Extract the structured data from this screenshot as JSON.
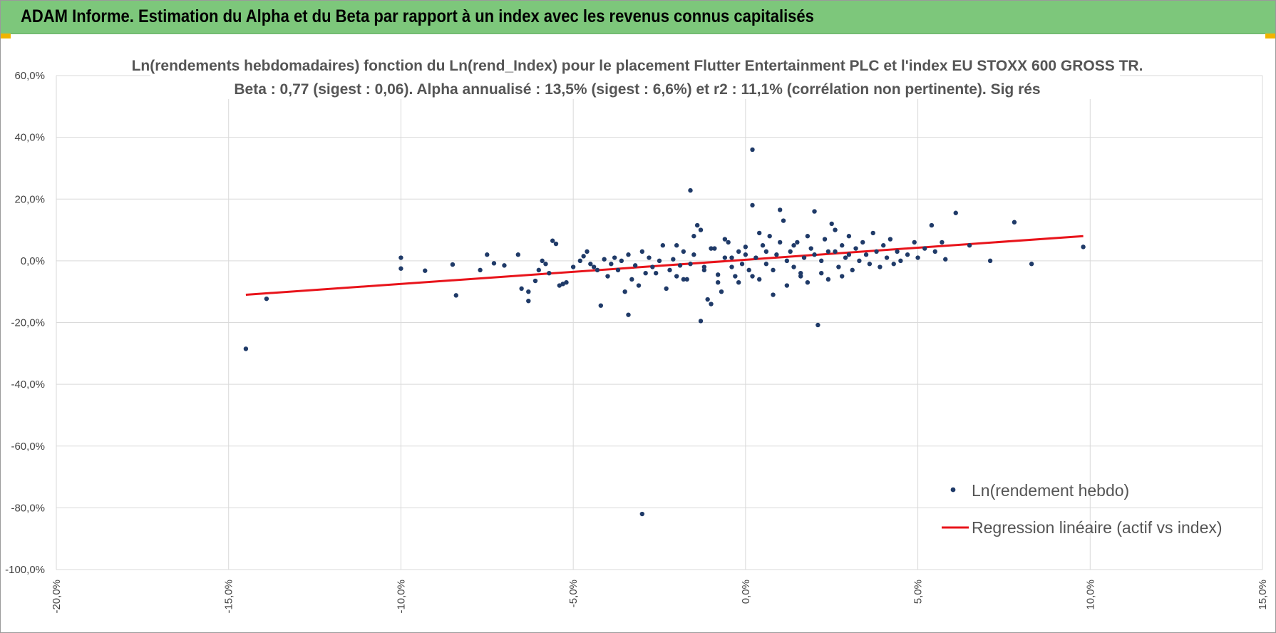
{
  "header": {
    "title": "ADAM Informe. Estimation du Alpha et du Beta par rapport à un index avec les revenus connus capitalisés"
  },
  "colors": {
    "header_bg": "#7dc77b",
    "points": "#1f3a68",
    "regression": "#e8141b",
    "grid": "#d9d9d9"
  },
  "chart_data": {
    "type": "scatter",
    "title": "Ln(rendements hebdomadaires) fonction du Ln(rend_Index) pour le placement Flutter Entertainment PLC et l'index EU STOXX 600 GROSS TR.",
    "subtitle": "Beta : 0,77 (sigest : 0,06). Alpha annualisé : 13,5% (sigest : 6,6%) et r2 : 11,1% (corrélation non pertinente). Sig rés",
    "xlabel": "",
    "ylabel": "",
    "xlim": [
      -0.2,
      0.15
    ],
    "ylim": [
      -1.0,
      0.6
    ],
    "x_ticks": [
      -0.2,
      -0.15,
      -0.1,
      -0.05,
      0.0,
      0.05,
      0.1,
      0.15
    ],
    "x_tick_labels": [
      "-20,0%",
      "-15,0%",
      "-10,0%",
      "-5,0%",
      "0,0%",
      "5,0%",
      "10,0%",
      "15,0%"
    ],
    "y_ticks": [
      0.6,
      0.4,
      0.2,
      0.0,
      -0.2,
      -0.4,
      -0.6,
      -0.8,
      -1.0
    ],
    "y_tick_labels": [
      "60,0%",
      "40,0%",
      "20,0%",
      "0,0%",
      "-20,0%",
      "-40,0%",
      "-60,0%",
      "-80,0%",
      "-100,0%"
    ],
    "grid": true,
    "legend_position": "bottom-right",
    "series": [
      {
        "name": "Ln(rendement hebdo)",
        "kind": "scatter",
        "points": [
          [
            -0.145,
            -0.285
          ],
          [
            -0.139,
            -0.123
          ],
          [
            -0.1,
            0.01
          ],
          [
            -0.1,
            -0.025
          ],
          [
            -0.093,
            -0.032
          ],
          [
            -0.085,
            -0.012
          ],
          [
            -0.084,
            -0.112
          ],
          [
            -0.077,
            -0.03
          ],
          [
            -0.075,
            0.02
          ],
          [
            -0.073,
            -0.008
          ],
          [
            -0.07,
            -0.015
          ],
          [
            -0.066,
            0.02
          ],
          [
            -0.065,
            -0.09
          ],
          [
            -0.063,
            -0.13
          ],
          [
            -0.063,
            -0.1
          ],
          [
            -0.061,
            -0.065
          ],
          [
            -0.06,
            -0.03
          ],
          [
            -0.059,
            0.0
          ],
          [
            -0.058,
            -0.01
          ],
          [
            -0.057,
            -0.04
          ],
          [
            -0.056,
            0.065
          ],
          [
            -0.055,
            0.055
          ],
          [
            -0.054,
            -0.08
          ],
          [
            -0.053,
            -0.075
          ],
          [
            -0.052,
            -0.07
          ],
          [
            -0.05,
            -0.02
          ],
          [
            -0.048,
            0.0
          ],
          [
            -0.047,
            0.015
          ],
          [
            -0.046,
            0.03
          ],
          [
            -0.045,
            -0.01
          ],
          [
            -0.044,
            -0.02
          ],
          [
            -0.043,
            -0.03
          ],
          [
            -0.042,
            -0.145
          ],
          [
            -0.041,
            0.005
          ],
          [
            -0.04,
            -0.05
          ],
          [
            -0.039,
            -0.01
          ],
          [
            -0.038,
            0.01
          ],
          [
            -0.037,
            -0.03
          ],
          [
            -0.036,
            0.0
          ],
          [
            -0.035,
            -0.1
          ],
          [
            -0.034,
            0.02
          ],
          [
            -0.033,
            -0.06
          ],
          [
            -0.032,
            -0.015
          ],
          [
            -0.031,
            -0.08
          ],
          [
            -0.03,
            0.03
          ],
          [
            -0.029,
            -0.04
          ],
          [
            -0.028,
            0.01
          ],
          [
            -0.027,
            -0.02
          ],
          [
            -0.026,
            -0.04
          ],
          [
            -0.034,
            -0.175
          ],
          [
            -0.03,
            -0.82
          ],
          [
            -0.025,
            0.0
          ],
          [
            -0.024,
            0.05
          ],
          [
            -0.023,
            -0.09
          ],
          [
            -0.022,
            -0.03
          ],
          [
            -0.021,
            0.005
          ],
          [
            -0.02,
            -0.05
          ],
          [
            -0.019,
            -0.015
          ],
          [
            -0.018,
            0.03
          ],
          [
            -0.017,
            -0.06
          ],
          [
            -0.016,
            -0.01
          ],
          [
            -0.015,
            0.02
          ],
          [
            -0.014,
            0.115
          ],
          [
            -0.013,
            0.1
          ],
          [
            -0.012,
            -0.03
          ],
          [
            -0.011,
            -0.125
          ],
          [
            -0.01,
            -0.14
          ],
          [
            -0.009,
            0.04
          ],
          [
            -0.008,
            -0.07
          ],
          [
            -0.007,
            -0.1
          ],
          [
            -0.006,
            0.01
          ],
          [
            -0.005,
            0.06
          ],
          [
            -0.004,
            -0.02
          ],
          [
            -0.003,
            -0.05
          ],
          [
            -0.002,
            0.03
          ],
          [
            -0.016,
            0.228
          ],
          [
            -0.013,
            -0.195
          ],
          [
            -0.001,
            -0.01
          ],
          [
            0.0,
            0.02
          ],
          [
            0.001,
            -0.03
          ],
          [
            0.002,
            0.36
          ],
          [
            0.002,
            0.18
          ],
          [
            0.003,
            0.01
          ],
          [
            0.004,
            -0.06
          ],
          [
            0.005,
            0.05
          ],
          [
            0.006,
            -0.01
          ],
          [
            0.007,
            0.08
          ],
          [
            0.008,
            -0.11
          ],
          [
            0.009,
            0.02
          ],
          [
            0.01,
            0.165
          ],
          [
            0.011,
            0.13
          ],
          [
            0.012,
            -0.08
          ],
          [
            0.013,
            0.03
          ],
          [
            0.014,
            -0.02
          ],
          [
            0.015,
            0.06
          ],
          [
            0.016,
            -0.04
          ],
          [
            0.017,
            0.01
          ],
          [
            0.018,
            -0.07
          ],
          [
            0.019,
            0.04
          ],
          [
            0.02,
            0.16
          ],
          [
            0.021,
            -0.208
          ],
          [
            0.022,
            0.0
          ],
          [
            0.023,
            0.07
          ],
          [
            0.024,
            -0.06
          ],
          [
            0.025,
            0.12
          ],
          [
            0.026,
            0.03
          ],
          [
            0.027,
            -0.02
          ],
          [
            0.028,
            0.05
          ],
          [
            0.029,
            0.01
          ],
          [
            0.03,
            0.08
          ],
          [
            0.031,
            -0.03
          ],
          [
            0.032,
            0.04
          ],
          [
            0.033,
            0.0
          ],
          [
            0.034,
            0.06
          ],
          [
            0.035,
            0.02
          ],
          [
            0.036,
            -0.01
          ],
          [
            0.037,
            0.09
          ],
          [
            0.038,
            0.03
          ],
          [
            0.039,
            -0.02
          ],
          [
            0.04,
            0.05
          ],
          [
            0.041,
            0.01
          ],
          [
            0.042,
            0.07
          ],
          [
            0.043,
            -0.01
          ],
          [
            0.044,
            0.03
          ],
          [
            0.045,
            0.0
          ],
          [
            0.047,
            0.02
          ],
          [
            0.049,
            0.06
          ],
          [
            0.05,
            0.01
          ],
          [
            0.052,
            0.04
          ],
          [
            0.054,
            0.115
          ],
          [
            0.055,
            0.03
          ],
          [
            0.057,
            0.06
          ],
          [
            0.058,
            0.005
          ],
          [
            0.061,
            0.155
          ],
          [
            0.065,
            0.05
          ],
          [
            0.071,
            0.0
          ],
          [
            0.078,
            0.125
          ],
          [
            0.083,
            -0.01
          ],
          [
            0.098,
            0.045
          ],
          [
            -0.02,
            0.05
          ],
          [
            -0.018,
            -0.06
          ],
          [
            -0.015,
            0.08
          ],
          [
            -0.012,
            -0.02
          ],
          [
            -0.01,
            0.04
          ],
          [
            -0.008,
            -0.045
          ],
          [
            -0.006,
            0.07
          ],
          [
            -0.004,
            0.01
          ],
          [
            -0.002,
            -0.07
          ],
          [
            0.0,
            0.045
          ],
          [
            0.002,
            -0.05
          ],
          [
            0.004,
            0.09
          ],
          [
            0.006,
            0.03
          ],
          [
            0.008,
            -0.03
          ],
          [
            0.01,
            0.06
          ],
          [
            0.012,
            0.0
          ],
          [
            0.014,
            0.05
          ],
          [
            0.016,
            -0.05
          ],
          [
            0.018,
            0.08
          ],
          [
            0.02,
            0.02
          ],
          [
            0.022,
            -0.04
          ],
          [
            0.024,
            0.03
          ],
          [
            0.026,
            0.1
          ],
          [
            0.028,
            -0.05
          ],
          [
            0.03,
            0.02
          ]
        ]
      },
      {
        "name": "Regression linéaire (actif vs index)",
        "kind": "line",
        "points": [
          [
            -0.145,
            -0.11
          ],
          [
            0.098,
            0.08
          ]
        ]
      }
    ]
  }
}
